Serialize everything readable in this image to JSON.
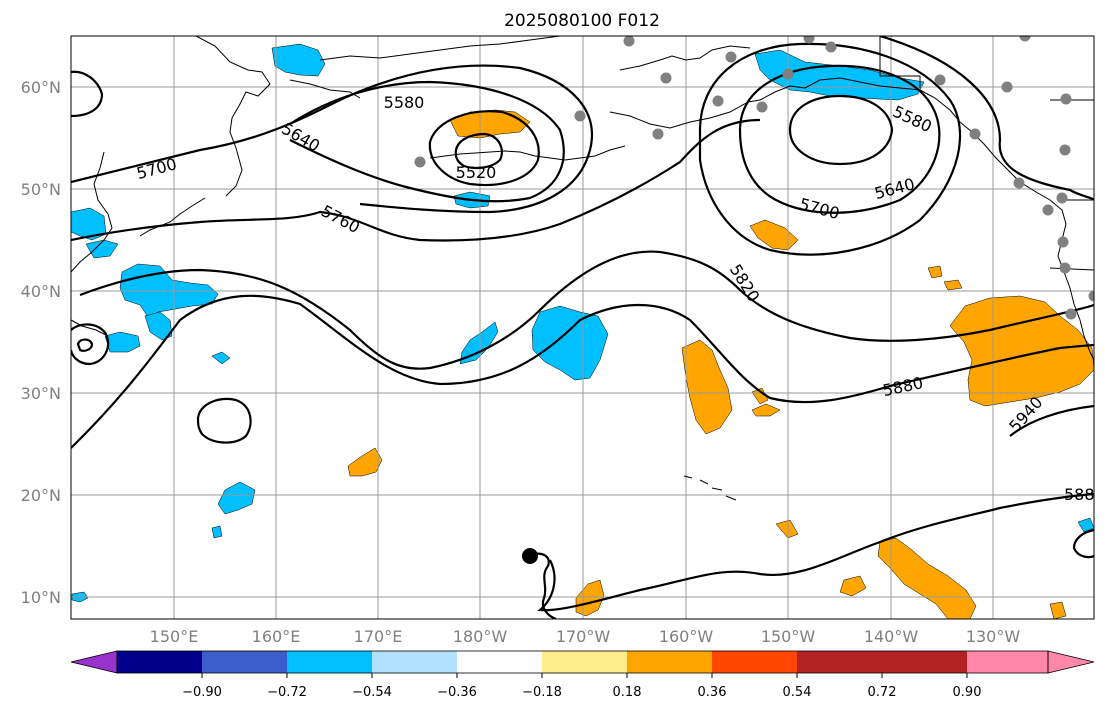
{
  "title": "2025080100 F012",
  "map": {
    "lat_labels": [
      "60°N",
      "50°N",
      "40°N",
      "30°N",
      "20°N",
      "10°N"
    ],
    "lon_labels": [
      "150°E",
      "160°E",
      "170°E",
      "180°W",
      "170°W",
      "160°W",
      "150°W",
      "140°W",
      "130°W"
    ],
    "contour_labels": [
      "5580",
      "5640",
      "5700",
      "5760",
      "5520",
      "5820",
      "5700",
      "5640",
      "5580",
      "5880",
      "5940",
      "588"
    ],
    "colors": {
      "coast": "#000000",
      "contour": "#000000",
      "grid": "#9a9a9a",
      "station_dot": "#808080",
      "negative_fill": "#00bfff",
      "positive_fill": "#ffa500"
    }
  },
  "colorbar": {
    "ticks": [
      "−0.90",
      "−0.72",
      "−0.54",
      "−0.36",
      "−0.18",
      "0.18",
      "0.36",
      "0.54",
      "0.72",
      "0.90"
    ],
    "colors": [
      "#9932cc",
      "#00008b",
      "#3a5fcd",
      "#00bfff",
      "#b0e2ff",
      "#ffffff",
      "#ffec8b",
      "#ffa500",
      "#ff4500",
      "#b22222",
      "#ff88aa"
    ]
  }
}
